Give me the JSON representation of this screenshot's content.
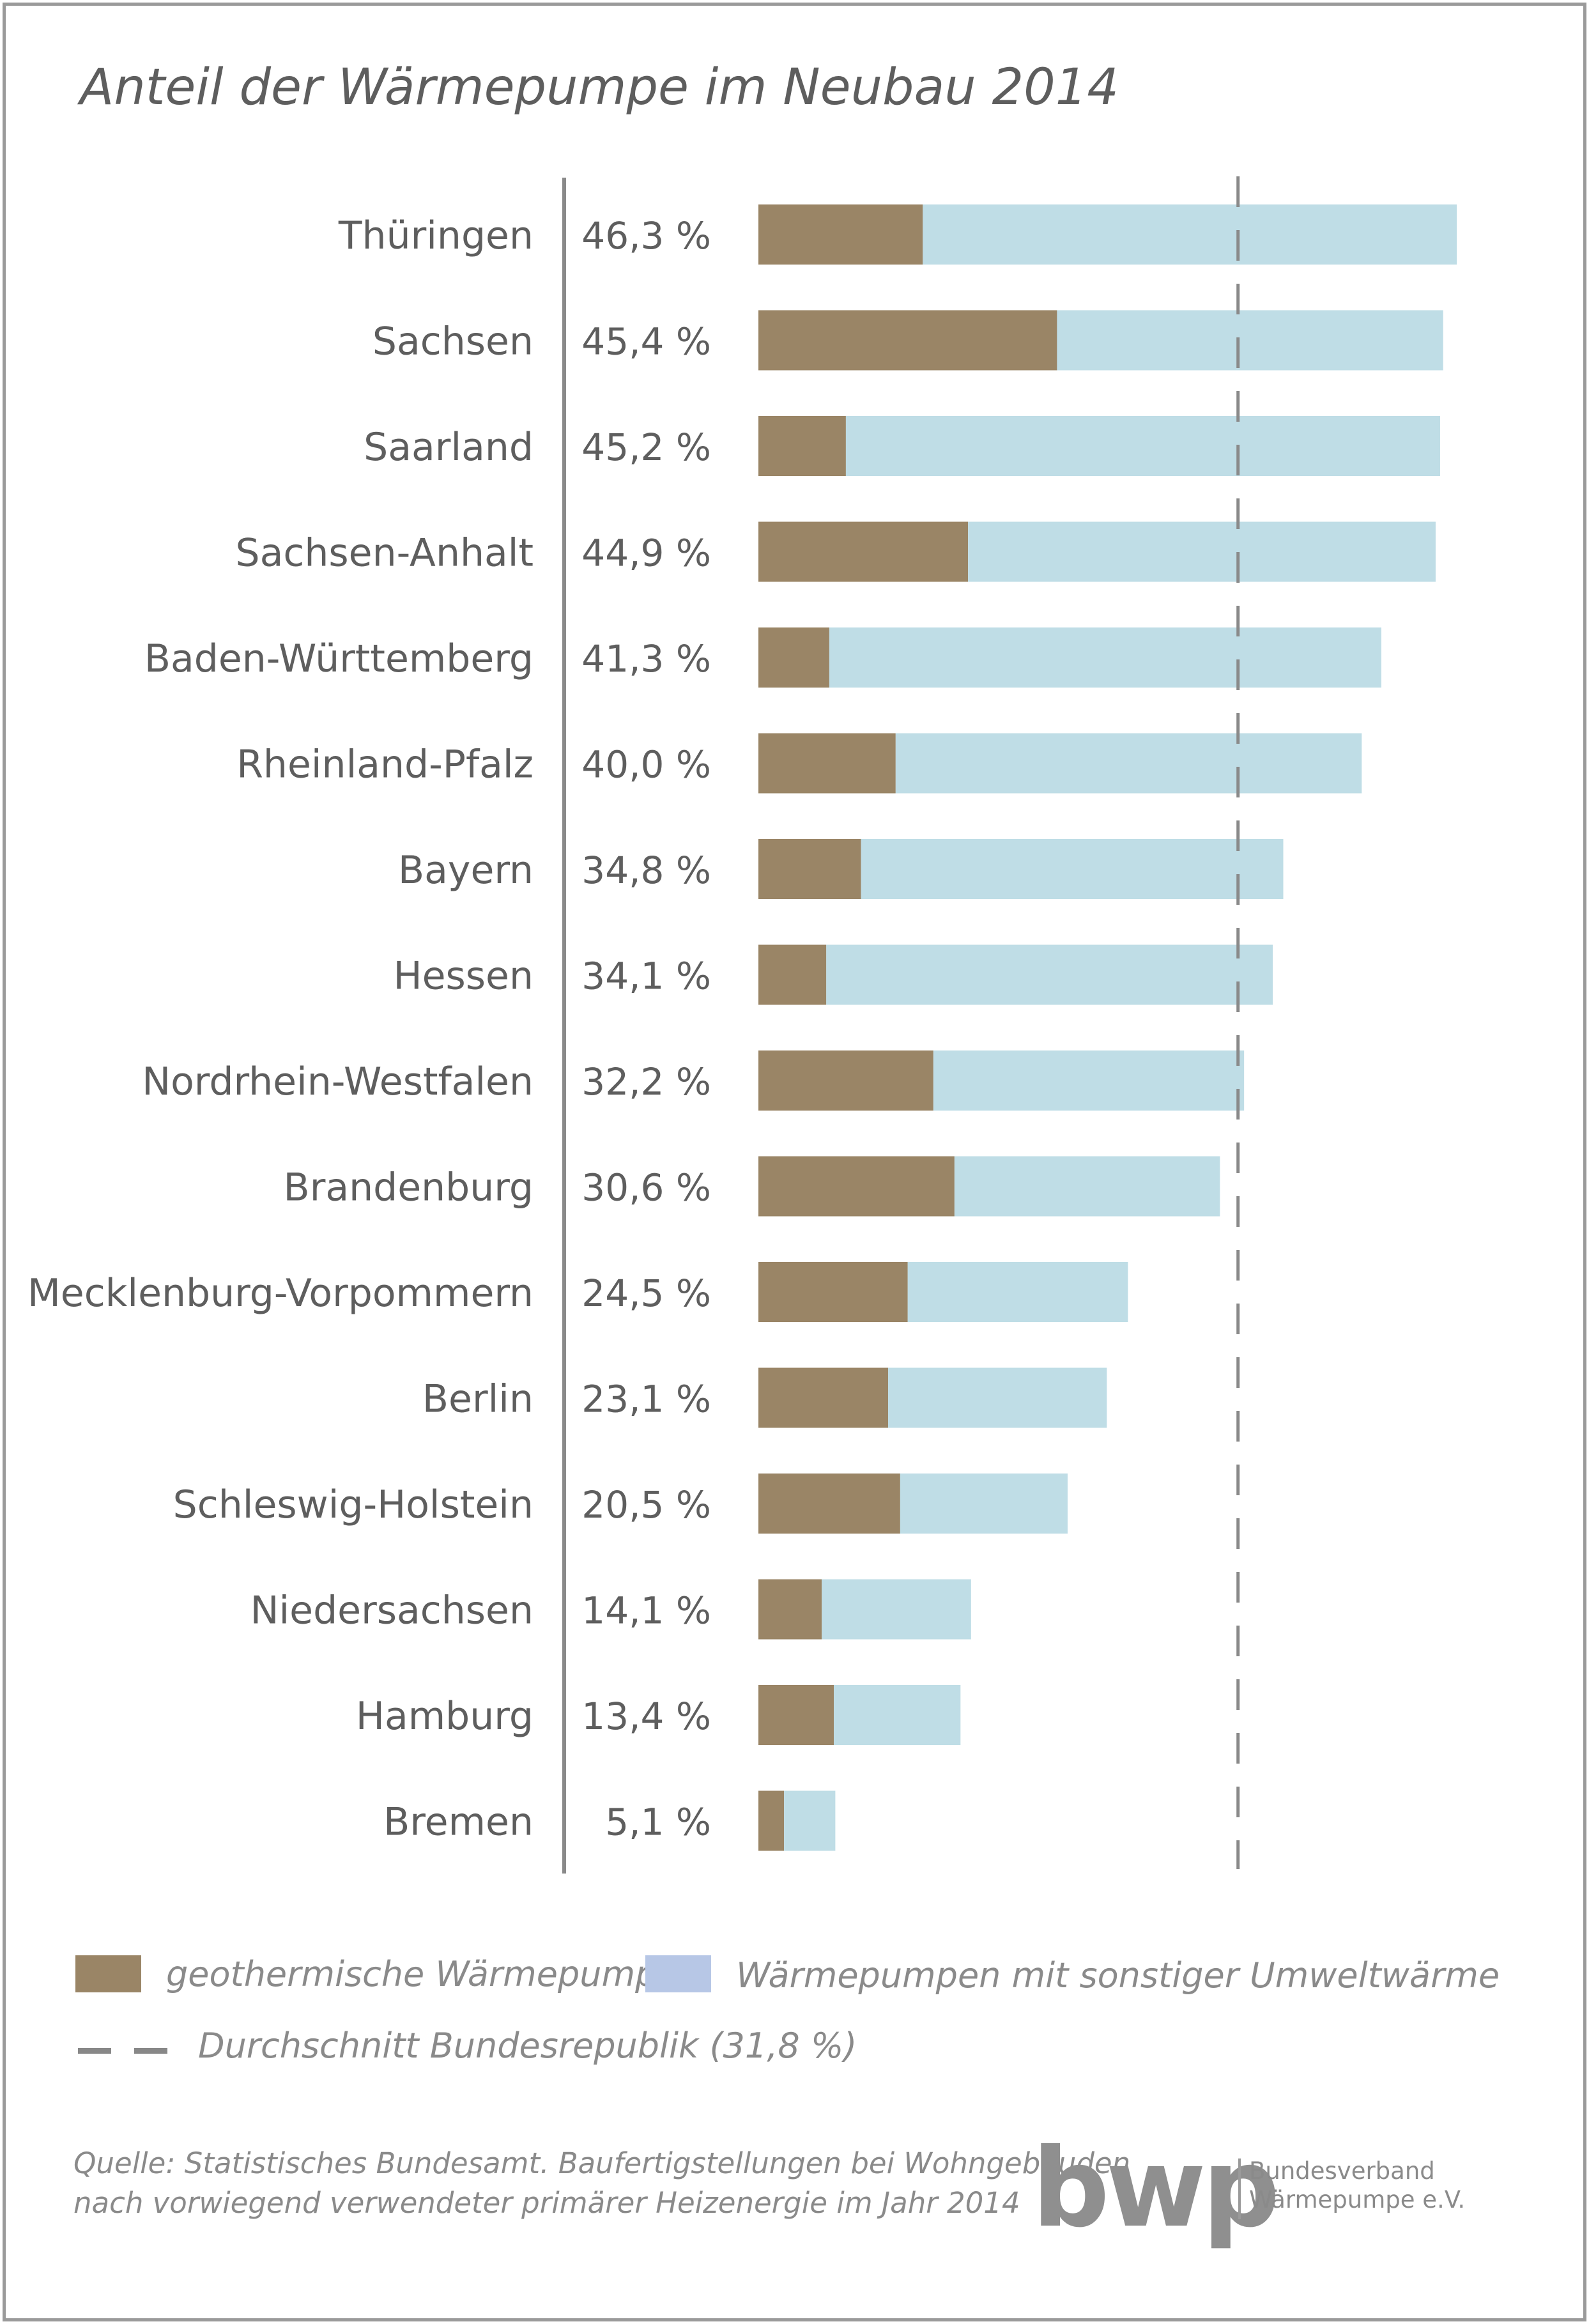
{
  "title": "Anteil der Wärmepumpe im Neubau 2014",
  "colors": {
    "geothermal": "#9a8566",
    "other": "#bfdde6",
    "other_legend": "#b7c7e6",
    "average_line": "#8a8a8a",
    "axis": "#8a8a8a",
    "text": "#5e5e5e"
  },
  "chart_data": {
    "type": "bar",
    "orientation": "horizontal",
    "stacked": true,
    "categories": [
      "Thüringen",
      "Sachsen",
      "Saarland",
      "Sachsen-Anhalt",
      "Baden-Württemberg",
      "Rheinland-Pfalz",
      "Bayern",
      "Hessen",
      "Nordrhein-Westfalen",
      "Brandenburg",
      "Mecklenburg-Vorpommern",
      "Berlin",
      "Schleswig-Holstein",
      "Niedersachsen",
      "Hamburg",
      "Bremen"
    ],
    "value_labels": [
      "46,3 %",
      "45,4 %",
      "45,2 %",
      "44,9 %",
      "41,3 %",
      "40,0 %",
      "34,8 %",
      "34,1 %",
      "32,2 %",
      "30,6 %",
      "24,5 %",
      "23,1 %",
      "20,5 %",
      "14,1 %",
      "13,4 %",
      "5,1 %"
    ],
    "totals": [
      46.3,
      45.4,
      45.2,
      44.9,
      41.3,
      40.0,
      34.8,
      34.1,
      32.2,
      30.6,
      24.5,
      23.1,
      20.5,
      14.1,
      13.4,
      5.1
    ],
    "series": [
      {
        "name": "geothermische Wärmepumpen",
        "values": [
          10.9,
          19.8,
          5.8,
          13.9,
          4.7,
          9.1,
          6.8,
          4.5,
          11.6,
          13.0,
          9.9,
          8.6,
          9.4,
          4.2,
          5.0,
          1.7
        ]
      },
      {
        "name": "Wärmepumpen mit sonstiger Umweltwärme",
        "values": [
          35.4,
          25.6,
          39.4,
          31.0,
          36.6,
          30.9,
          28.0,
          29.6,
          20.6,
          17.6,
          14.6,
          14.5,
          11.1,
          9.9,
          8.4,
          3.4
        ]
      }
    ],
    "average": {
      "value": 31.8,
      "label": "Durchschnitt Bundesrepublik (31,8 %)"
    },
    "xlim": [
      0,
      46.3
    ],
    "legend": "bottom"
  },
  "source": {
    "line1": "Quelle: Statistisches Bundesamt. Baufertigstellungen bei Wohngebäuden",
    "line2": "nach vorwiegend verwendeter primärer Heizenergie im Jahr 2014"
  },
  "logo": {
    "mark": "bwp",
    "line1": "Bundesverband",
    "line2": "Wärmepumpe e.V."
  }
}
